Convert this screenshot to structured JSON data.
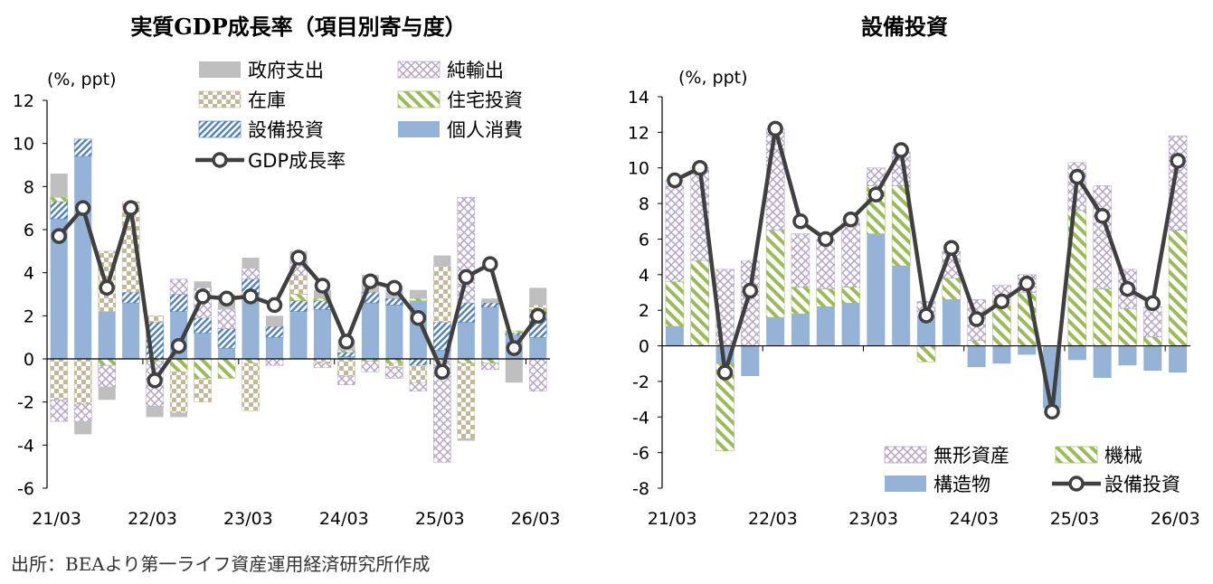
{
  "title_left": "実質GDP成長率（項目別寄与度）",
  "title_right": "設備投資",
  "source": "出所：BEAより第一ライフ資産運用経済研究所作成",
  "chart_data": [
    {
      "type": "bar",
      "stacked": true,
      "title": "実質GDP成長率（項目別寄与度）",
      "unit_label": "(%, ppt)",
      "ylim": [
        -6,
        12
      ],
      "yticks": [
        -6,
        -4,
        -2,
        0,
        2,
        4,
        6,
        8,
        10,
        12
      ],
      "tick_labels": [
        "21/03",
        "22/03",
        "23/03",
        "24/03",
        "25/03",
        "26/03"
      ],
      "legend_position": "top-right",
      "categories": [
        "21/03",
        "21/06",
        "21/09",
        "21/12",
        "22/03",
        "22/06",
        "22/09",
        "22/12",
        "23/03",
        "23/06",
        "23/09",
        "23/12",
        "24/03",
        "24/06",
        "24/09",
        "24/12",
        "25/03",
        "25/06",
        "25/09",
        "25/12",
        "26/03"
      ],
      "series": [
        {
          "name": "個人消費",
          "kind": "bar",
          "color": "#95b3d7",
          "pattern": "solid",
          "values": [
            6.5,
            9.4,
            2.2,
            2.6,
            0.0,
            2.2,
            1.2,
            0.5,
            2.8,
            1.0,
            2.2,
            2.3,
            0.1,
            2.6,
            2.5,
            2.7,
            0.4,
            1.7,
            2.4,
            1.1,
            1.0
          ]
        },
        {
          "name": "設備投資",
          "kind": "bar",
          "color": "#4f81bd",
          "pattern": "diagonal",
          "values": [
            0.8,
            0.8,
            0.0,
            0.5,
            1.7,
            0.8,
            0.7,
            0.9,
            0.9,
            0.5,
            0.5,
            0.4,
            0.2,
            0.5,
            0.3,
            -0.3,
            1.3,
            0.9,
            0.2,
            0.1,
            1.2
          ]
        },
        {
          "name": "住宅投資",
          "kind": "bar",
          "color": "#9bbb59",
          "pattern": "diagonal-wide",
          "values": [
            0.2,
            0.0,
            -0.3,
            0.0,
            -0.1,
            -0.6,
            -0.9,
            -0.9,
            -0.2,
            0.0,
            0.3,
            0.1,
            0.1,
            -0.1,
            -0.2,
            0.1,
            -0.1,
            -0.2,
            -0.2,
            0.1,
            0.1
          ]
        },
        {
          "name": "在庫",
          "kind": "bar",
          "color": "#c4b89a",
          "pattern": "checker",
          "values": [
            -1.9,
            -2.1,
            2.8,
            4.2,
            0.3,
            -1.9,
            -1.1,
            0.0,
            -2.2,
            0.0,
            0.9,
            -0.2,
            -0.8,
            0.0,
            -0.2,
            -0.8,
            2.6,
            -3.5,
            0.0,
            0.0,
            0.2
          ]
        },
        {
          "name": "純輸出",
          "kind": "bar",
          "color": "#b2a1c7",
          "pattern": "crosshatch",
          "values": [
            -1.0,
            -0.8,
            -1.0,
            0.0,
            -2.1,
            0.7,
            1.4,
            0.9,
            0.5,
            -0.3,
            0.7,
            -0.2,
            -0.4,
            -0.5,
            -0.5,
            -0.4,
            -4.7,
            4.9,
            -0.3,
            0.0,
            -1.5
          ]
        },
        {
          "name": "政府支出",
          "kind": "bar",
          "color": "#bfbfbf",
          "pattern": "solid",
          "values": [
            1.1,
            -0.6,
            -0.6,
            0.0,
            -0.5,
            -0.2,
            0.3,
            0.7,
            0.5,
            0.5,
            0.4,
            0.4,
            0.5,
            0.8,
            0.6,
            0.4,
            0.5,
            -0.1,
            0.2,
            -1.1,
            0.8
          ]
        },
        {
          "name": "GDP成長率",
          "kind": "line",
          "color": "#404040",
          "values": [
            5.7,
            7.0,
            3.3,
            7.0,
            -1.0,
            0.6,
            2.9,
            2.8,
            2.9,
            2.5,
            4.7,
            3.4,
            0.8,
            3.6,
            3.3,
            1.9,
            -0.6,
            3.8,
            4.4,
            0.5,
            2.0
          ]
        }
      ]
    },
    {
      "type": "bar",
      "stacked": true,
      "title": "設備投資",
      "unit_label": "(%, ppt)",
      "ylim": [
        -8,
        14
      ],
      "yticks": [
        -8,
        -6,
        -4,
        -2,
        0,
        2,
        4,
        6,
        8,
        10,
        12,
        14
      ],
      "tick_labels": [
        "21/03",
        "22/03",
        "23/03",
        "24/03",
        "25/03",
        "26/03"
      ],
      "legend_position": "bottom-right",
      "categories": [
        "21/03",
        "21/06",
        "21/09",
        "21/12",
        "22/03",
        "22/06",
        "22/09",
        "22/12",
        "23/03",
        "23/06",
        "23/09",
        "23/12",
        "24/03",
        "24/06",
        "24/09",
        "24/12",
        "25/03",
        "25/06",
        "25/09",
        "25/12",
        "26/03"
      ],
      "series": [
        {
          "name": "構造物",
          "kind": "bar",
          "color": "#95b3d7",
          "pattern": "solid",
          "values": [
            1.1,
            0.0,
            -1.0,
            -1.7,
            1.6,
            1.8,
            2.2,
            2.4,
            6.3,
            4.5,
            1.7,
            2.6,
            -1.2,
            -1.0,
            -0.5,
            -3.5,
            -0.8,
            -1.8,
            -1.1,
            -1.4,
            -1.5
          ]
        },
        {
          "name": "機械",
          "kind": "bar",
          "color": "#9bbb59",
          "pattern": "diagonal-wide",
          "values": [
            2.5,
            4.8,
            -4.9,
            0.0,
            4.9,
            1.5,
            1.0,
            0.9,
            2.7,
            4.5,
            -0.9,
            1.2,
            0.3,
            2.6,
            3.0,
            0.0,
            7.6,
            3.2,
            2.1,
            0.5,
            6.5
          ]
        },
        {
          "name": "無形資産",
          "kind": "bar",
          "color": "#b2a1c7",
          "pattern": "crosshatch",
          "values": [
            5.7,
            5.2,
            4.3,
            4.8,
            5.7,
            3.0,
            2.8,
            3.8,
            1.0,
            1.9,
            0.8,
            1.5,
            2.3,
            0.8,
            1.0,
            0.0,
            2.7,
            5.8,
            2.2,
            1.7,
            5.3
          ]
        },
        {
          "name": "設備投資",
          "kind": "line",
          "color": "#404040",
          "values": [
            9.3,
            10.0,
            -1.5,
            3.1,
            12.2,
            7.0,
            6.0,
            7.1,
            8.5,
            11.0,
            1.7,
            5.5,
            1.5,
            2.5,
            3.5,
            -3.7,
            9.5,
            7.3,
            3.2,
            2.4,
            10.4
          ]
        }
      ]
    }
  ]
}
